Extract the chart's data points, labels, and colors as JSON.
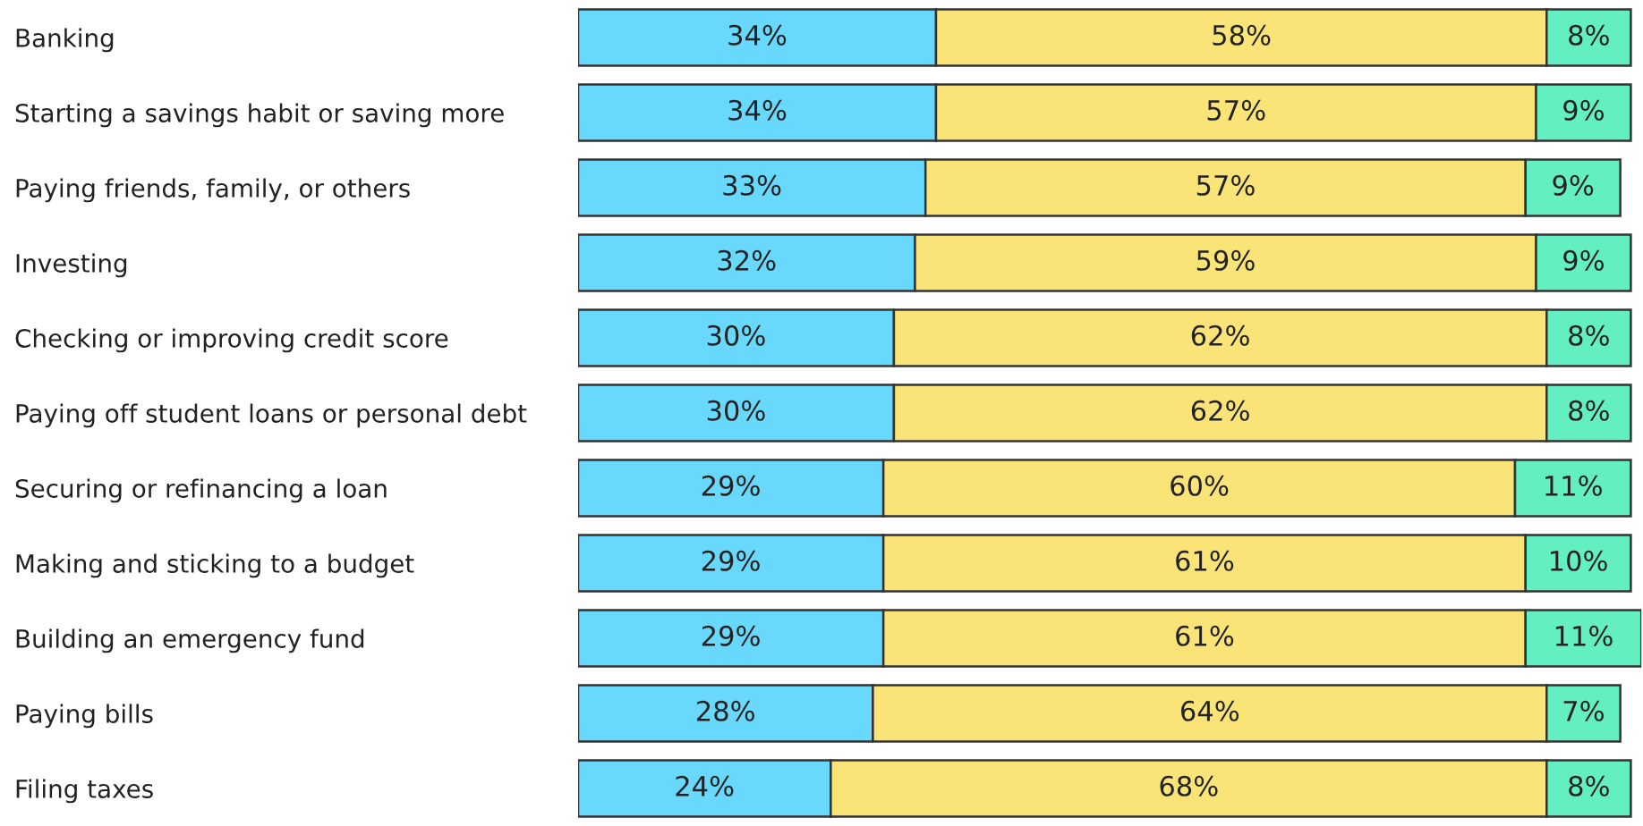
{
  "chart_data": {
    "type": "bar",
    "orientation": "horizontal",
    "stacked": true,
    "xlim": [
      0,
      101
    ],
    "tick_labels": "y",
    "grid": false,
    "legend": false,
    "categories": [
      "Banking",
      "Starting a savings habit or saving more",
      "Paying friends, family, or others",
      "Investing",
      "Checking or improving credit score",
      "Paying off student loans or personal debt",
      "Securing or refinancing a loan",
      "Making and sticking to a budget",
      "Building an emergency fund",
      "Paying bills",
      "Filing taxes"
    ],
    "series": [
      {
        "color": "#68d8fd",
        "values": [
          34,
          34,
          33,
          32,
          30,
          30,
          29,
          29,
          29,
          28,
          24
        ],
        "value_labels": [
          "34%",
          "34%",
          "33%",
          "32%",
          "30%",
          "30%",
          "29%",
          "29%",
          "29%",
          "28%",
          "24%"
        ]
      },
      {
        "color": "#fae478",
        "values": [
          58,
          57,
          57,
          59,
          62,
          62,
          60,
          61,
          61,
          64,
          68
        ],
        "value_labels": [
          "58%",
          "57%",
          "57%",
          "59%",
          "62%",
          "62%",
          "60%",
          "61%",
          "61%",
          "64%",
          "68%"
        ]
      },
      {
        "color": "#64efc2",
        "values": [
          8,
          9,
          9,
          9,
          8,
          8,
          11,
          10,
          11,
          7,
          8
        ],
        "value_labels": [
          "8%",
          "9%",
          "9%",
          "9%",
          "8%",
          "8%",
          "11%",
          "10%",
          "11%",
          "7%",
          "8%"
        ]
      }
    ]
  }
}
